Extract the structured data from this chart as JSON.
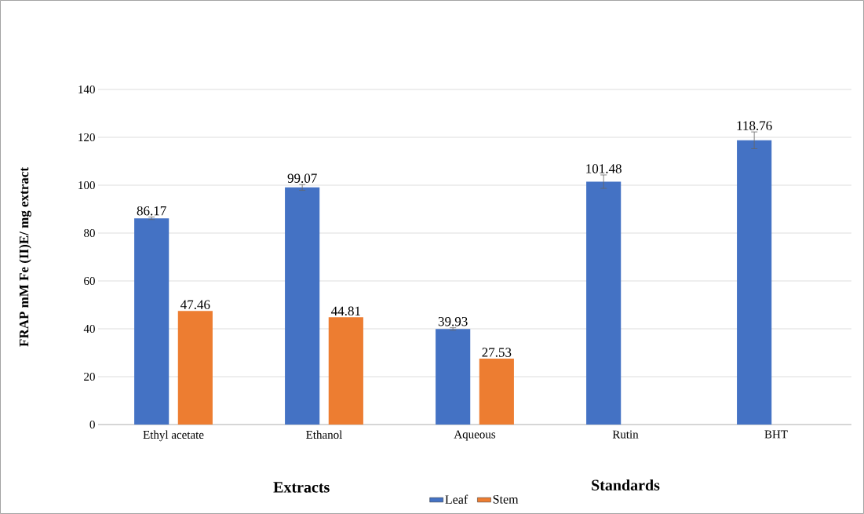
{
  "chart_data": {
    "type": "bar",
    "ylabel": "FRAP mM Fe (II)E/ mg extract",
    "categories": [
      "Ethyl acetate",
      "Ethanol",
      "Aqueous",
      "Rutin",
      "BHT"
    ],
    "series": [
      {
        "name": "Leaf",
        "color": "#4472c4",
        "values": [
          86.17,
          99.07,
          39.93,
          101.48,
          118.76
        ],
        "errors": [
          0.5,
          1.2,
          0.5,
          2.8,
          3.5
        ]
      },
      {
        "name": "Stem",
        "color": "#ed7d31",
        "values": [
          47.46,
          44.81,
          27.53,
          null,
          null
        ]
      }
    ],
    "ylim": [
      0,
      140
    ],
    "yticks": [
      0,
      20,
      40,
      60,
      80,
      100,
      120,
      140
    ],
    "grid": "y",
    "legend": "bottom",
    "data_labels": true,
    "annotations": [
      "Extracts",
      "Standards"
    ]
  }
}
